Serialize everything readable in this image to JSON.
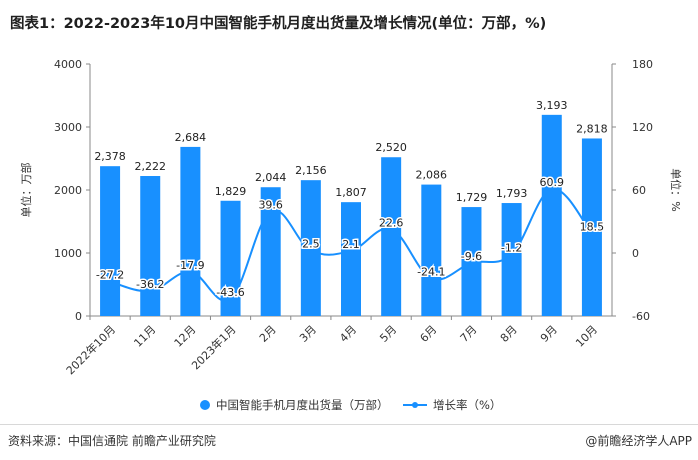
{
  "title": "图表1：2022-2023年10月中国智能手机月度出货量及增长情况(单位：万部，%)",
  "footer": {
    "source": "资料来源：中国信通院 前瞻产业研究院",
    "brand": "@前瞻经济学人APP"
  },
  "colors": {
    "bar": "#1890ff",
    "line": "#1890ff",
    "axis": "#888888",
    "grid": "#e6e6e6",
    "text": "#333333"
  },
  "chart_data": {
    "type": "bar+line",
    "categories": [
      "2022年10月",
      "11月",
      "12月",
      "2023年1月",
      "2月",
      "3月",
      "4月",
      "5月",
      "6月",
      "7月",
      "8月",
      "9月",
      "10月"
    ],
    "series": [
      {
        "name": "中国智能手机月度出货量（万部）",
        "type": "bar",
        "axis": "left",
        "values": [
          2378,
          2222,
          2684,
          1829,
          2044,
          2156,
          1807,
          2520,
          2086,
          1729,
          1793,
          3193,
          2818
        ],
        "labels": [
          "2,378",
          "2,222",
          "2,684",
          "1,829",
          "2,044",
          "2,156",
          "1,807",
          "2,520",
          "2,086",
          "1,729",
          "1,793",
          "3,193",
          "2,818"
        ]
      },
      {
        "name": "增长率（%）",
        "type": "line",
        "axis": "right",
        "values": [
          -27.2,
          -36.2,
          -17.9,
          -43.6,
          39.6,
          2.5,
          2.1,
          22.6,
          -24.1,
          -9.6,
          -1.2,
          60.9,
          18.5
        ],
        "labels": [
          "-27.2",
          "-36.2",
          "-17.9",
          "-43.6",
          "39.6",
          "2.5",
          "2.1",
          "22.6",
          "-24.1",
          "-9.6",
          "-1.2",
          "60.9",
          "18.5"
        ]
      }
    ],
    "ylabel_left": "单位：万部",
    "ylabel_right": "单位：%",
    "ylim_left": [
      0,
      4000
    ],
    "yticks_left": [
      "0",
      "1000",
      "2000",
      "3000",
      "4000"
    ],
    "ylim_right": [
      -60,
      180
    ],
    "yticks_right": [
      "-60",
      "0",
      "60",
      "120",
      "180"
    ],
    "grid": false,
    "legend_position": "bottom"
  }
}
